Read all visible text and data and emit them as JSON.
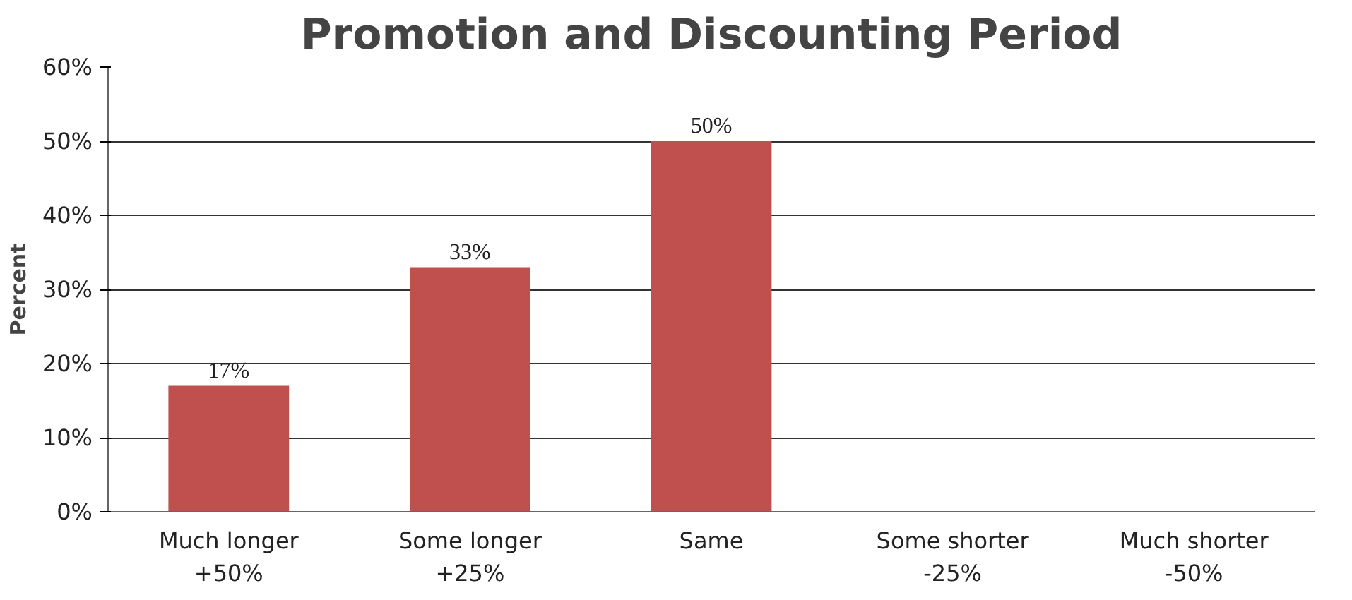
{
  "chart_data": {
    "type": "bar",
    "title": "Promotion and Discounting Period",
    "ylabel": "Percent",
    "categories": [
      "Much longer\n+50%",
      "Some longer\n+25%",
      "Same",
      "Some shorter\n-25%",
      "Much shorter\n-50%"
    ],
    "values": [
      17,
      33,
      50,
      null,
      null
    ],
    "value_labels": [
      "17%",
      "33%",
      "50%",
      null,
      null
    ],
    "color": "#c0504d",
    "ylim": [
      0,
      60
    ],
    "yticks": [
      {
        "value": 0,
        "label": "0%"
      },
      {
        "value": 10,
        "label": "10%"
      },
      {
        "value": 20,
        "label": "20%"
      },
      {
        "value": 30,
        "label": "30%"
      },
      {
        "value": 40,
        "label": "40%"
      },
      {
        "value": 50,
        "label": "50%"
      },
      {
        "value": 60,
        "label": "60%"
      }
    ],
    "grid": "y"
  }
}
